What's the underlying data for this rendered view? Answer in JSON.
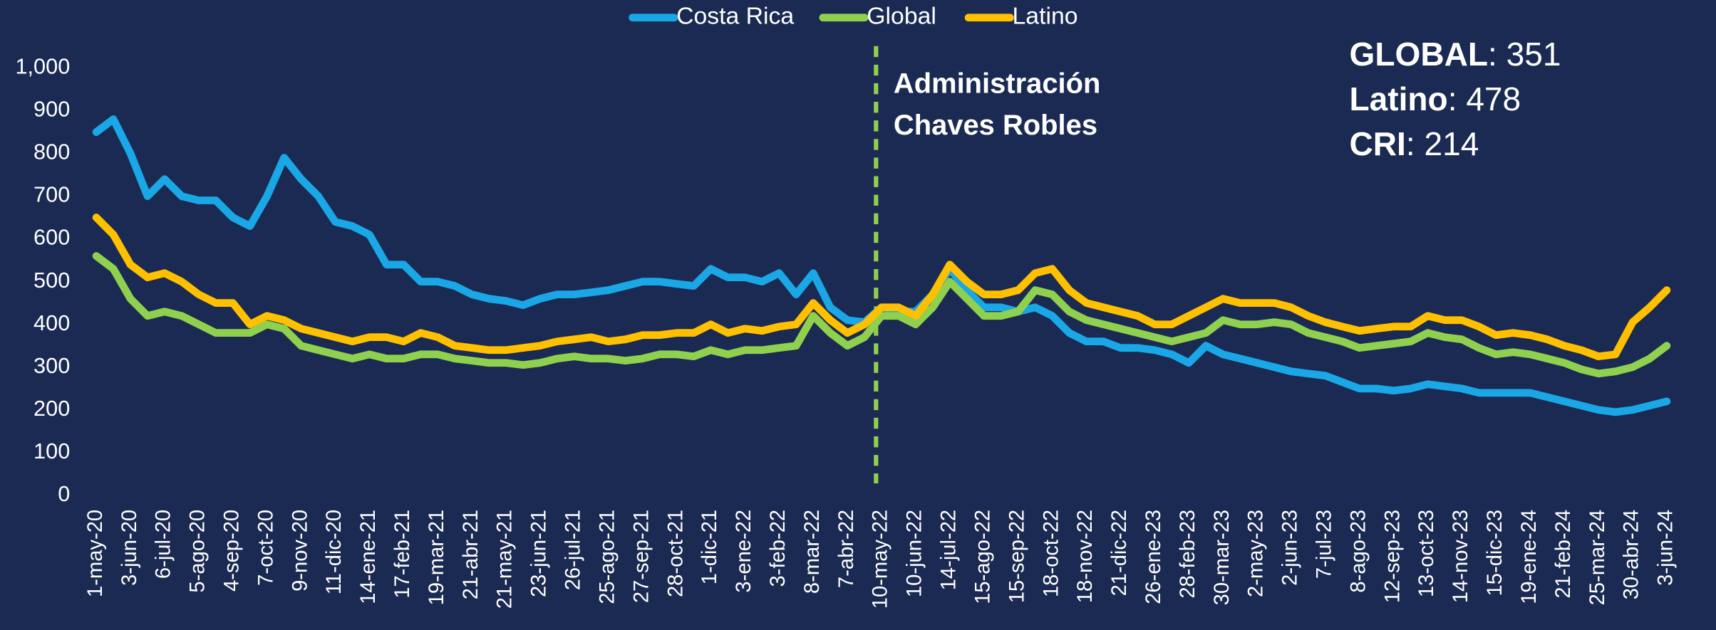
{
  "chart_data": {
    "type": "line",
    "categories": [
      "1-may-20",
      null,
      "3-jun-20",
      null,
      "6-jul-20",
      null,
      "5-ago-20",
      null,
      "4-sep-20",
      null,
      "7-oct-20",
      null,
      "9-nov-20",
      null,
      "11-dic-20",
      null,
      "14-ene-21",
      null,
      "17-feb-21",
      null,
      "19-mar-21",
      null,
      "21-abr-21",
      null,
      "21-may-21",
      null,
      "23-jun-21",
      null,
      "26-jul-21",
      null,
      "25-ago-21",
      null,
      "27-sep-21",
      null,
      "28-oct-21",
      null,
      "1-dic-21",
      null,
      "3-ene-22",
      null,
      "3-feb-22",
      null,
      "8-mar-22",
      null,
      "7-abr-22",
      null,
      "10-may-22",
      null,
      "10-jun-22",
      null,
      "14-jul-22",
      null,
      "15-ago-22",
      null,
      "15-sep-22",
      null,
      "18-oct-22",
      null,
      "18-nov-22",
      null,
      "21-dic-22",
      null,
      "26-ene-23",
      null,
      "28-feb-23",
      null,
      "30-mar-23",
      null,
      "2-may-23",
      null,
      "2-jun-23",
      null,
      "7-jul-23",
      null,
      "8-ago-23",
      null,
      "12-sep-23",
      null,
      "13-oct-23",
      null,
      "14-nov-23",
      null,
      "15-dic-23",
      null,
      "19-ene-24",
      null,
      "21-feb-24",
      null,
      "25-mar-24",
      null,
      "30-abr-24",
      null,
      "3-jun-24"
    ],
    "series": [
      {
        "name": "Costa Rica",
        "color": "#1aa7e6",
        "values": [
          850,
          880,
          800,
          700,
          740,
          700,
          690,
          690,
          650,
          630,
          700,
          790,
          740,
          700,
          640,
          630,
          610,
          540,
          540,
          500,
          500,
          490,
          470,
          460,
          455,
          445,
          460,
          470,
          470,
          475,
          480,
          490,
          500,
          500,
          495,
          490,
          530,
          510,
          510,
          500,
          520,
          470,
          520,
          440,
          410,
          405,
          440,
          430,
          430,
          470,
          530,
          480,
          440,
          440,
          430,
          440,
          420,
          380,
          360,
          360,
          345,
          345,
          340,
          330,
          310,
          350,
          330,
          320,
          310,
          300,
          290,
          285,
          280,
          265,
          250,
          250,
          245,
          250,
          260,
          255,
          250,
          240,
          240,
          240,
          240,
          230,
          220,
          210,
          200,
          195,
          200,
          210,
          220
        ]
      },
      {
        "name": "Global",
        "color": "#8fd14f",
        "values": [
          560,
          530,
          460,
          420,
          430,
          420,
          400,
          380,
          380,
          380,
          400,
          390,
          350,
          340,
          330,
          320,
          330,
          320,
          320,
          330,
          330,
          320,
          315,
          310,
          310,
          305,
          310,
          320,
          325,
          320,
          320,
          315,
          320,
          330,
          330,
          325,
          340,
          330,
          340,
          340,
          345,
          350,
          420,
          380,
          350,
          370,
          420,
          420,
          400,
          440,
          500,
          460,
          420,
          420,
          430,
          480,
          470,
          430,
          410,
          400,
          390,
          380,
          370,
          360,
          370,
          380,
          410,
          400,
          400,
          405,
          400,
          380,
          370,
          360,
          345,
          350,
          355,
          360,
          380,
          370,
          365,
          345,
          330,
          335,
          330,
          320,
          310,
          295,
          285,
          290,
          300,
          320,
          350
        ]
      },
      {
        "name": "Latino",
        "color": "#ffc000",
        "values": [
          650,
          610,
          540,
          510,
          520,
          500,
          470,
          450,
          450,
          400,
          420,
          410,
          390,
          380,
          370,
          360,
          370,
          370,
          360,
          380,
          370,
          350,
          345,
          340,
          340,
          345,
          350,
          360,
          365,
          370,
          360,
          365,
          375,
          375,
          380,
          380,
          400,
          380,
          390,
          385,
          395,
          400,
          450,
          410,
          380,
          400,
          440,
          440,
          420,
          470,
          540,
          500,
          470,
          470,
          480,
          520,
          530,
          480,
          450,
          440,
          430,
          420,
          400,
          400,
          420,
          440,
          460,
          450,
          450,
          450,
          440,
          420,
          405,
          395,
          385,
          390,
          395,
          395,
          420,
          410,
          410,
          395,
          375,
          380,
          375,
          365,
          350,
          340,
          325,
          330,
          405,
          440,
          480
        ]
      }
    ],
    "ylim": [
      0,
      1000
    ],
    "yticks": [
      0,
      100,
      200,
      300,
      400,
      500,
      600,
      700,
      800,
      900,
      {
        "value": 1000,
        "label": "1,000"
      }
    ],
    "grid": false,
    "legend": "top",
    "vline": {
      "x": "10-may-22",
      "color": "#8fd14f",
      "label": [
        "Administración",
        "Chaves Robles"
      ]
    },
    "stats": [
      {
        "label": "GLOBAL",
        "value": 351
      },
      {
        "label": "Latino",
        "value": 478
      },
      {
        "label": "CRI",
        "value": 214
      }
    ]
  }
}
